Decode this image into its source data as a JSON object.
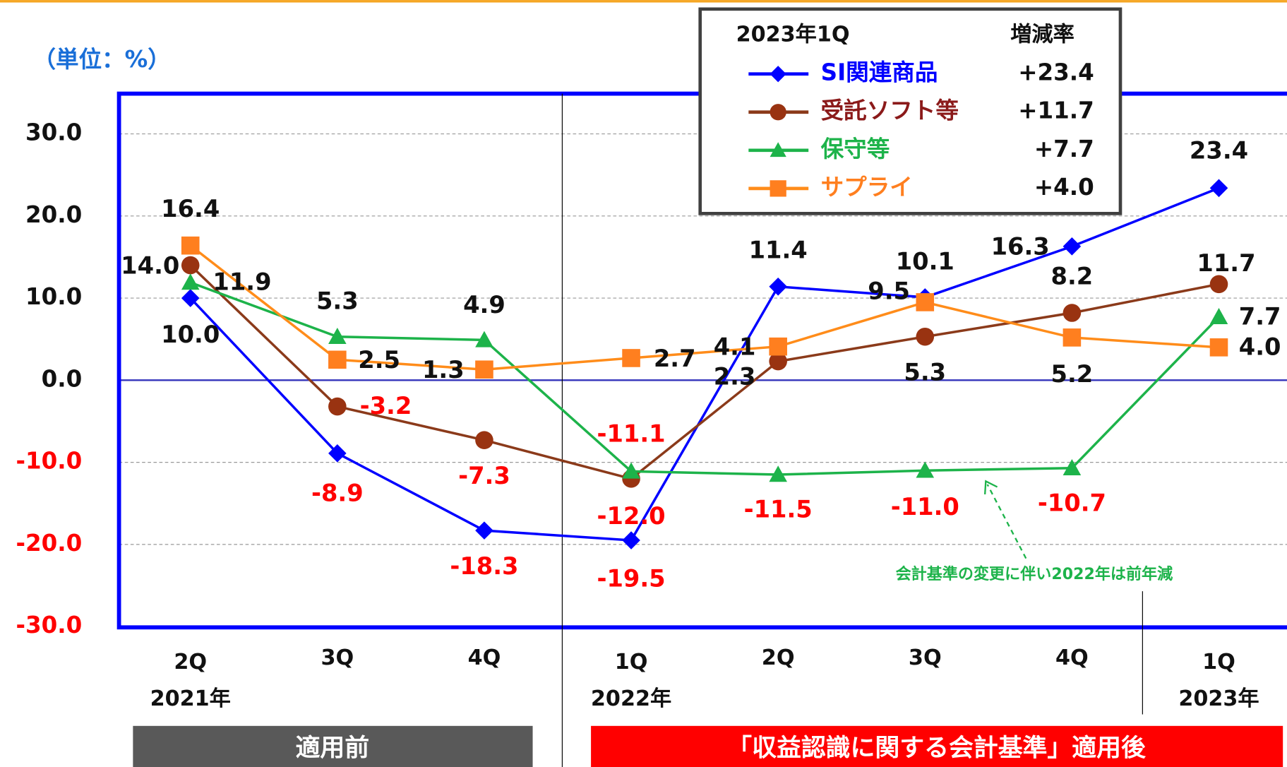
{
  "chart_data": {
    "type": "line",
    "unit_label": "（単位：%）",
    "categories": [
      "2Q",
      "3Q",
      "4Q",
      "1Q",
      "2Q",
      "3Q",
      "4Q",
      "1Q"
    ],
    "years": [
      "2021年",
      null,
      null,
      "2022年",
      null,
      null,
      null,
      "2023年"
    ],
    "ylim": [
      -30,
      35
    ],
    "yticks": [
      {
        "value": -30,
        "label": "-30.0"
      },
      {
        "value": -20,
        "label": "-20.0"
      },
      {
        "value": -10,
        "label": "-10.0"
      },
      {
        "value": 0,
        "label": "0.0"
      },
      {
        "value": 10,
        "label": "10.0"
      },
      {
        "value": 20,
        "label": "20.0"
      },
      {
        "value": 30,
        "label": "30.0"
      }
    ],
    "grid": true,
    "legend_title": "2023年1Q",
    "legend_value_title": "増減率",
    "series": [
      {
        "name": "SI関連商品",
        "color": "#0000ff",
        "marker": "diamond",
        "legend_value": "+23.4",
        "values": [
          10.0,
          -8.9,
          -18.3,
          -19.5,
          11.4,
          10.1,
          16.3,
          23.4
        ],
        "value_labels": [
          "10.0",
          "-8.9",
          "-18.3",
          "-19.5",
          "11.4",
          "10.1",
          "16.3",
          "23.4"
        ]
      },
      {
        "name": "受託ソフト等",
        "color": "#993311",
        "marker": "circle",
        "legend_value": "+11.7",
        "values": [
          14.0,
          -3.2,
          -7.3,
          -12.0,
          2.3,
          5.3,
          8.2,
          11.7
        ],
        "value_labels": [
          "14.0",
          "-3.2",
          "-7.3",
          "-12.0",
          "2.3",
          "5.3",
          "8.2",
          "11.7"
        ]
      },
      {
        "name": "保守等",
        "color": "#1db34a",
        "marker": "triangle",
        "legend_value": "+7.7",
        "values": [
          11.9,
          5.3,
          4.9,
          -11.1,
          -11.5,
          -11.0,
          -10.7,
          7.7
        ],
        "value_labels": [
          "11.9",
          "5.3",
          "4.9",
          "-11.1",
          "-11.5",
          "-11.0",
          "-10.7",
          "7.7"
        ]
      },
      {
        "name": "サプライ",
        "color": "#ff7f1f",
        "marker": "square",
        "legend_value": "+4.0",
        "values": [
          16.4,
          2.5,
          1.3,
          2.7,
          4.1,
          9.5,
          5.2,
          4.0
        ],
        "value_labels": [
          "16.4",
          "2.5",
          "1.3",
          "2.7",
          "4.1",
          "9.5",
          "5.2",
          "4.0"
        ]
      }
    ],
    "annotation": "会計基準の変更に伴い2022年は前年減",
    "phase_before": "適用前",
    "phase_after": "「収益認識に関する会計基準」適用後"
  }
}
